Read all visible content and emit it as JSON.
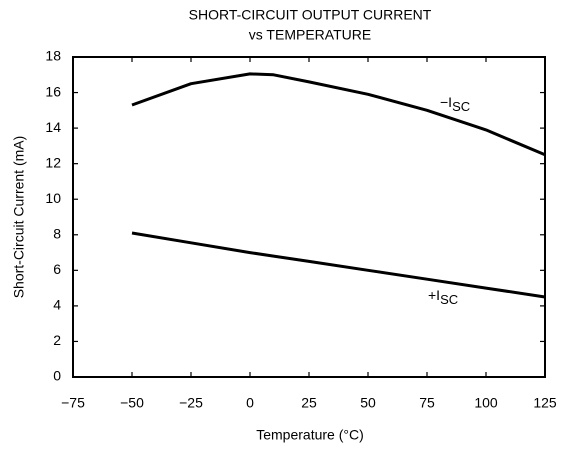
{
  "chart_data": {
    "type": "line",
    "title": "SHORT-CIRCUIT OUTPUT CURRENT",
    "subtitle": "vs TEMPERATURE",
    "x_label": "Temperature (°C)",
    "y_label": "Short-Circuit Current (mA)",
    "xlim": [
      -75,
      125
    ],
    "xticks": [
      {
        "value": -75,
        "label": "−75"
      },
      {
        "value": -50,
        "label": "−50"
      },
      {
        "value": -25,
        "label": "−25"
      },
      0,
      25,
      50,
      75,
      100,
      125
    ],
    "ylim": [
      0,
      18
    ],
    "yticks": [
      0,
      2,
      4,
      6,
      8,
      10,
      12,
      14,
      16,
      18
    ],
    "grid": false,
    "series": [
      {
        "name": "−I",
        "subscript": "SC",
        "color": "#000000",
        "x": [
          -50,
          -25,
          0,
          10,
          25,
          50,
          75,
          100,
          125
        ],
        "values": [
          15.3,
          16.5,
          17.05,
          17.0,
          16.6,
          15.9,
          15.0,
          13.9,
          12.5
        ]
      },
      {
        "name": "+I",
        "subscript": "SC",
        "color": "#000000",
        "x": [
          -50,
          -25,
          0,
          25,
          50,
          75,
          100,
          125
        ],
        "values": [
          8.1,
          7.55,
          7.0,
          6.5,
          6.0,
          5.5,
          5.0,
          4.5
        ]
      }
    ]
  }
}
